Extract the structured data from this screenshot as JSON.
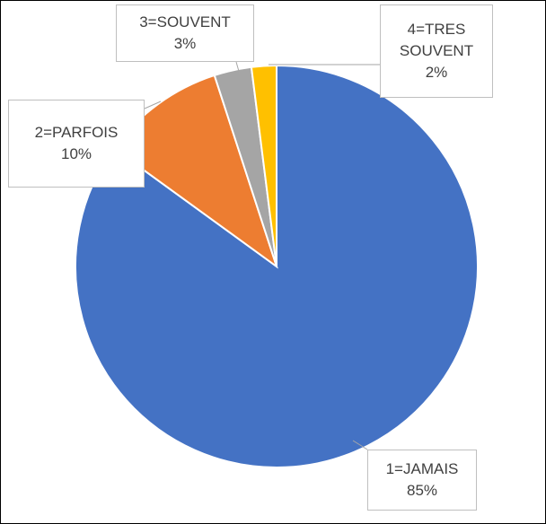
{
  "chart_data": {
    "type": "pie",
    "categories": [
      "1=JAMAIS",
      "2=PARFOIS",
      "3=SOUVENT",
      "4=TRES SOUVENT"
    ],
    "values": [
      85,
      10,
      3,
      2
    ],
    "value_labels": [
      "85%",
      "10%",
      "3%",
      "2%"
    ],
    "colors": [
      "#4472c4",
      "#ed7d31",
      "#a5a5a5",
      "#ffc000"
    ]
  }
}
